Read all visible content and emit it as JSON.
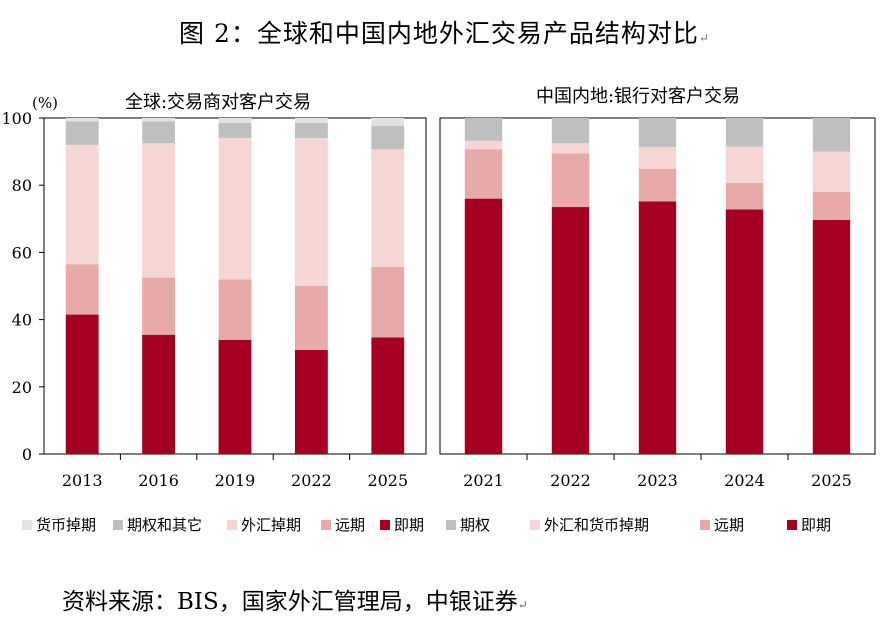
{
  "title": "图 2：全球和中国内地外汇交易产品结构对比",
  "source": "资料来源：BIS，国家外汇管理局，中银证券",
  "paragraph_mark": "↵",
  "colors": {
    "spot": "#A50021",
    "forward": "#E8A9A9",
    "fx_swap": "#F6D5D5",
    "options_other": "#BFBFBF",
    "currency_swap": "#E3E3E3"
  },
  "chart_data": [
    {
      "type": "bar",
      "stacked": true,
      "title": "全球:交易商对客户交易",
      "unit_label": "(%)",
      "ylim": [
        0,
        100
      ],
      "yticks": [
        "0",
        "20",
        "40",
        "60",
        "80",
        "100"
      ],
      "categories": [
        "2013",
        "2016",
        "2019",
        "2022",
        "2025"
      ],
      "series": [
        {
          "name": "即期",
          "color_key": "spot",
          "values": [
            41.5,
            35.5,
            34,
            31,
            34.7
          ]
        },
        {
          "name": "远期",
          "color_key": "forward",
          "values": [
            15,
            17,
            18,
            19,
            21
          ]
        },
        {
          "name": "外汇掉期",
          "color_key": "fx_swap",
          "values": [
            35.5,
            40,
            42,
            44,
            35
          ]
        },
        {
          "name": "期权和其它",
          "color_key": "options_other",
          "values": [
            7,
            6.5,
            4.5,
            4.5,
            7
          ]
        },
        {
          "name": "货币掉期",
          "color_key": "currency_swap",
          "values": [
            1,
            1,
            1.5,
            1.5,
            2.3
          ]
        }
      ]
    },
    {
      "type": "bar",
      "stacked": true,
      "title": "中国内地:银行对客户交易",
      "ylim": [
        0,
        100
      ],
      "categories": [
        "2021",
        "2022",
        "2023",
        "2024",
        "2025"
      ],
      "series": [
        {
          "name": "即期",
          "color_key": "spot",
          "values": [
            76,
            73.5,
            75.2,
            72.8,
            69.7
          ]
        },
        {
          "name": "远期",
          "color_key": "forward",
          "values": [
            14.7,
            16,
            9.7,
            7.9,
            8.3
          ]
        },
        {
          "name": "外汇和货币掉期",
          "color_key": "fx_swap",
          "values": [
            2.5,
            3,
            6.5,
            10.8,
            12
          ]
        },
        {
          "name": "期权",
          "color_key": "options_other",
          "values": [
            6.8,
            7.5,
            8.6,
            8.5,
            10
          ]
        }
      ]
    }
  ],
  "legend": [
    {
      "label": "货币掉期",
      "color_key": "currency_swap"
    },
    {
      "label": "期权和其它",
      "color_key": "options_other"
    },
    {
      "label": "外汇掉期",
      "color_key": "fx_swap"
    },
    {
      "label": "远期",
      "color_key": "forward"
    },
    {
      "label": "即期",
      "color_key": "spot"
    },
    {
      "label": "期权",
      "color_key": "options_other"
    },
    {
      "label": "外汇和货币掉期",
      "color_key": "fx_swap"
    },
    {
      "label": "远期",
      "color_key": "forward"
    },
    {
      "label": "即期",
      "color_key": "spot"
    }
  ]
}
